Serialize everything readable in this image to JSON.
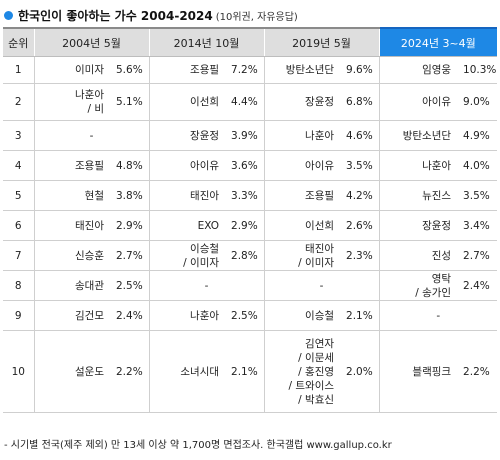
{
  "title": {
    "main": "한국인이 좋아하는 가수 2004-2024",
    "sub": "(10위권, 자유응답)"
  },
  "columns": {
    "rank": "순위",
    "p2004": "2004년 5월",
    "p2014": "2014년 10월",
    "p2019": "2019년 5월",
    "p2024": "2024년 3~4월"
  },
  "rows": [
    {
      "rank": "1",
      "cells": [
        [
          "이미자",
          "5.6%"
        ],
        [
          "조용필",
          "7.2%"
        ],
        [
          "방탄소년단",
          "9.6%"
        ],
        [
          "임영웅",
          "10.3%"
        ]
      ]
    },
    {
      "rank": "2",
      "cells": [
        [
          "나훈아\n/ 비",
          "5.1%"
        ],
        [
          "이선희",
          "4.4%"
        ],
        [
          "장윤정",
          "6.8%"
        ],
        [
          "아이유",
          "9.0%"
        ]
      ]
    },
    {
      "rank": "3",
      "cells": [
        [
          "-",
          ""
        ],
        [
          "장윤정",
          "3.9%"
        ],
        [
          "나훈아",
          "4.6%"
        ],
        [
          "방탄소년단",
          "4.9%"
        ]
      ]
    },
    {
      "rank": "4",
      "cells": [
        [
          "조용필",
          "4.8%"
        ],
        [
          "아이유",
          "3.6%"
        ],
        [
          "아이유",
          "3.5%"
        ],
        [
          "나훈아",
          "4.0%"
        ]
      ]
    },
    {
      "rank": "5",
      "cells": [
        [
          "현철",
          "3.8%"
        ],
        [
          "태진아",
          "3.3%"
        ],
        [
          "조용필",
          "4.2%"
        ],
        [
          "뉴진스",
          "3.5%"
        ]
      ]
    },
    {
      "rank": "6",
      "cells": [
        [
          "태진아",
          "2.9%"
        ],
        [
          "EXO",
          "2.9%"
        ],
        [
          "이선희",
          "2.6%"
        ],
        [
          "장윤정",
          "3.4%"
        ]
      ]
    },
    {
      "rank": "7",
      "cells": [
        [
          "신승훈",
          "2.7%"
        ],
        [
          "이승철\n/ 이미자",
          "2.8%"
        ],
        [
          "태진아\n/ 이미자",
          "2.3%"
        ],
        [
          "진성",
          "2.7%"
        ]
      ]
    },
    {
      "rank": "8",
      "cells": [
        [
          "송대관",
          "2.5%"
        ],
        [
          "-",
          ""
        ],
        [
          "-",
          ""
        ],
        [
          "영탁\n/ 송가인",
          "2.4%"
        ]
      ]
    },
    {
      "rank": "9",
      "cells": [
        [
          "김건모",
          "2.4%"
        ],
        [
          "나훈아",
          "2.5%"
        ],
        [
          "이승철",
          "2.1%"
        ],
        [
          "-",
          ""
        ]
      ]
    },
    {
      "rank": "10",
      "cells": [
        [
          "설운도",
          "2.2%"
        ],
        [
          "소녀시대",
          "2.1%"
        ],
        [
          "김연자\n/ 이문세\n/ 홍진영\n/ 트와이스\n/ 박효신",
          "2.0%"
        ],
        [
          "블랙핑크",
          "2.2%"
        ]
      ]
    }
  ],
  "footnote": "- 시기별 전국(제주 제외) 만 13세 이상 약 1,700명 면접조사. 한국갤럽 www.gallup.co.kr",
  "colors": {
    "accent": "#1e88e5",
    "header_bg": "#dedede"
  }
}
